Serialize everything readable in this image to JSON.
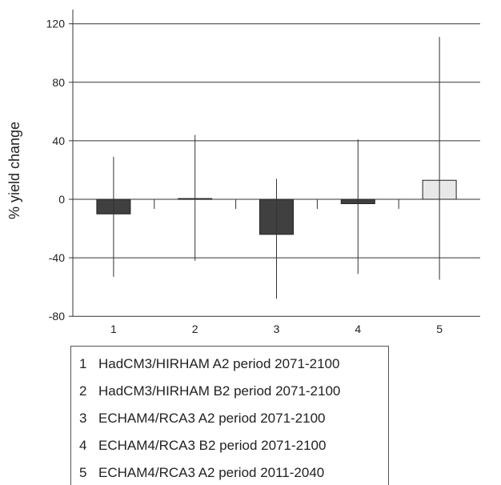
{
  "chart_data": {
    "type": "bar",
    "categories": [
      "1",
      "2",
      "3",
      "4",
      "5"
    ],
    "values": [
      -10,
      0.5,
      -24,
      -3,
      13
    ],
    "error_high": [
      29,
      44,
      14,
      41,
      111
    ],
    "error_low": [
      -53,
      -42,
      -68,
      -51,
      -55
    ],
    "bar_colors": [
      "#404040",
      "#404040",
      "#404040",
      "#404040",
      "#e8e8e8"
    ],
    "ylabel": "% yield change",
    "xlabel": "",
    "ylim": [
      -80,
      130
    ],
    "yticks": [
      -80,
      -40,
      0,
      40,
      80,
      120
    ],
    "grid": true,
    "legend": [
      {
        "num": "1",
        "label": "HadCM3/HIRHAM  A2 period 2071-2100"
      },
      {
        "num": "2",
        "label": "HadCM3/HIRHAM B2 period 2071-2100"
      },
      {
        "num": "3",
        "label": "ECHAM4/RCA3 A2 period 2071-2100"
      },
      {
        "num": "4",
        "label": "ECHAM4/RCA3 B2 period 2071-2100"
      },
      {
        "num": "5",
        "label": "ECHAM4/RCA3 A2 period 2011-2040"
      }
    ]
  }
}
